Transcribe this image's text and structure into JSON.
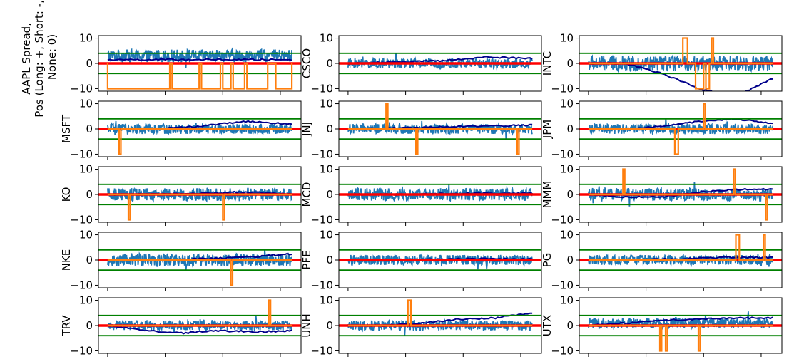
{
  "figure": {
    "ylabel_lines": [
      "AAPL Spread,",
      "Pos (Long: +, Short: -,",
      "None: 0)"
    ]
  },
  "colors": {
    "spread": "#1f77b4",
    "position": "#ff7f0e",
    "mean": "#ff0000",
    "band": "#008000",
    "beta": "#00008b"
  },
  "chart_data": {
    "type": "line",
    "layout": {
      "rows": 5,
      "cols": 3
    },
    "shared": {
      "xlim": [
        -80,
        1680
      ],
      "ylim": [
        -11,
        11
      ],
      "yticks": [
        -10,
        0,
        10
      ],
      "band_levels": [
        4,
        -4
      ],
      "mean_level": 0
    },
    "panels": [
      {
        "label": "",
        "beta": [
          1.5,
          1.5
        ],
        "positions": [
          [
            0,
            -10
          ],
          [
            540,
            -10
          ],
          [
            540,
            0
          ],
          [
            560,
            0
          ],
          [
            560,
            -10
          ],
          [
            795,
            -10
          ],
          [
            795,
            0
          ],
          [
            815,
            0
          ],
          [
            815,
            -10
          ],
          [
            980,
            -10
          ],
          [
            980,
            0
          ],
          [
            1000,
            0
          ],
          [
            1000,
            -10
          ],
          [
            1070,
            -10
          ],
          [
            1070,
            0
          ],
          [
            1090,
            0
          ],
          [
            1090,
            -10
          ],
          [
            1190,
            -10
          ],
          [
            1190,
            0
          ],
          [
            1210,
            0
          ],
          [
            1210,
            -10
          ],
          [
            1390,
            -10
          ],
          [
            1390,
            0
          ],
          [
            1460,
            0
          ],
          [
            1460,
            -10
          ],
          [
            1600,
            -10
          ],
          [
            1600,
            0
          ]
        ],
        "spread_level": 3,
        "spread_amp": 2.5
      },
      {
        "label": "CSCO",
        "beta": [
          0,
          0.5,
          1,
          2.5,
          2
        ],
        "positions": [],
        "spread_level": 0,
        "spread_amp": 2
      },
      {
        "label": "INTC",
        "beta": [
          0,
          0,
          -4,
          -10,
          -13,
          -6
        ],
        "positions": [
          [
            820,
            0
          ],
          [
            820,
            10
          ],
          [
            860,
            10
          ],
          [
            860,
            0
          ],
          [
            930,
            0
          ],
          [
            930,
            -10
          ],
          [
            1000,
            -10
          ],
          [
            1000,
            0
          ],
          [
            1020,
            0
          ],
          [
            1020,
            -10
          ],
          [
            1050,
            -10
          ],
          [
            1050,
            0
          ],
          [
            1070,
            0
          ],
          [
            1070,
            10
          ],
          [
            1085,
            10
          ],
          [
            1085,
            0
          ]
        ],
        "spread_level": 0,
        "spread_amp": 3
      },
      {
        "label": "MSFT",
        "beta": [
          0,
          0,
          1,
          3,
          2
        ],
        "positions": [
          [
            100,
            0
          ],
          [
            100,
            -10
          ],
          [
            115,
            -10
          ],
          [
            115,
            0
          ]
        ],
        "spread_level": 0,
        "spread_amp": 2
      },
      {
        "label": "JNJ",
        "beta": [
          0,
          0.5,
          1,
          1.5
        ],
        "positions": [
          [
            330,
            0
          ],
          [
            330,
            10
          ],
          [
            345,
            10
          ],
          [
            345,
            0
          ],
          [
            590,
            0
          ],
          [
            590,
            -10
          ],
          [
            605,
            -10
          ],
          [
            605,
            0
          ],
          [
            1470,
            0
          ],
          [
            1470,
            -10
          ],
          [
            1485,
            -10
          ],
          [
            1485,
            0
          ]
        ],
        "spread_level": 0,
        "spread_amp": 2
      },
      {
        "label": "JPM",
        "beta": [
          0,
          0,
          1,
          3,
          4,
          2
        ],
        "positions": [
          [
            750,
            0
          ],
          [
            750,
            -10
          ],
          [
            780,
            -10
          ],
          [
            780,
            0
          ],
          [
            1000,
            0
          ],
          [
            1000,
            10
          ],
          [
            1015,
            10
          ],
          [
            1015,
            0
          ]
        ],
        "spread_level": 0,
        "spread_amp": 2
      },
      {
        "label": "KO",
        "beta": [
          0,
          0,
          0.5,
          1,
          0
        ],
        "positions": [
          [
            180,
            0
          ],
          [
            180,
            -10
          ],
          [
            195,
            -10
          ],
          [
            195,
            0
          ],
          [
            1000,
            0
          ],
          [
            1000,
            -10
          ],
          [
            1015,
            -10
          ],
          [
            1015,
            0
          ]
        ],
        "spread_level": 0,
        "spread_amp": 2.5
      },
      {
        "label": "MCD",
        "beta": [
          0,
          0,
          0.5,
          0.5
        ],
        "positions": [],
        "spread_level": 0,
        "spread_amp": 2.5
      },
      {
        "label": "MMM",
        "beta": [
          0,
          -1,
          -1,
          1,
          2,
          2
        ],
        "positions": [
          [
            300,
            0
          ],
          [
            300,
            10
          ],
          [
            315,
            10
          ],
          [
            315,
            0
          ],
          [
            1260,
            0
          ],
          [
            1260,
            10
          ],
          [
            1275,
            10
          ],
          [
            1275,
            0
          ],
          [
            1540,
            0
          ],
          [
            1540,
            -10
          ],
          [
            1555,
            -10
          ],
          [
            1555,
            0
          ]
        ],
        "spread_level": 0,
        "spread_amp": 2.5
      },
      {
        "label": "NKE",
        "beta": [
          0,
          0,
          0.5,
          1,
          2.5
        ],
        "positions": [
          [
            1070,
            0
          ],
          [
            1070,
            -10
          ],
          [
            1085,
            -10
          ],
          [
            1085,
            0
          ]
        ],
        "spread_level": 0,
        "spread_amp": 2.5
      },
      {
        "label": "PFE",
        "beta": [
          0,
          0,
          0.5,
          0.5
        ],
        "positions": [],
        "spread_level": 0,
        "spread_amp": 2
      },
      {
        "label": "PG",
        "beta": [
          0,
          0,
          0.5,
          1,
          1
        ],
        "positions": [
          [
            1280,
            0
          ],
          [
            1280,
            10
          ],
          [
            1310,
            10
          ],
          [
            1310,
            0
          ],
          [
            1520,
            0
          ],
          [
            1520,
            10
          ],
          [
            1535,
            10
          ],
          [
            1535,
            0
          ]
        ],
        "spread_level": 0,
        "spread_amp": 2
      },
      {
        "label": "TRV",
        "beta": [
          0,
          -2,
          -3,
          -2,
          -2.5,
          -2
        ],
        "positions": [
          [
            1400,
            0
          ],
          [
            1400,
            10
          ],
          [
            1415,
            10
          ],
          [
            1415,
            0
          ]
        ],
        "spread_level": 0,
        "spread_amp": 2
      },
      {
        "label": "UNH",
        "beta": [
          0,
          0,
          1,
          2.5,
          3,
          5
        ],
        "positions": [
          [
            520,
            0
          ],
          [
            520,
            10
          ],
          [
            545,
            10
          ],
          [
            545,
            0
          ]
        ],
        "spread_level": 0,
        "spread_amp": 2
      },
      {
        "label": "UTX",
        "beta": [
          0,
          1,
          2,
          2.5,
          3,
          3
        ],
        "positions": [
          [
            620,
            0
          ],
          [
            620,
            -10
          ],
          [
            635,
            -10
          ],
          [
            635,
            0
          ],
          [
            670,
            0
          ],
          [
            670,
            -10
          ],
          [
            685,
            -10
          ],
          [
            685,
            0
          ],
          [
            955,
            0
          ],
          [
            955,
            -10
          ],
          [
            970,
            -10
          ],
          [
            970,
            0
          ]
        ],
        "spread_level": 1,
        "spread_amp": 2
      }
    ]
  }
}
